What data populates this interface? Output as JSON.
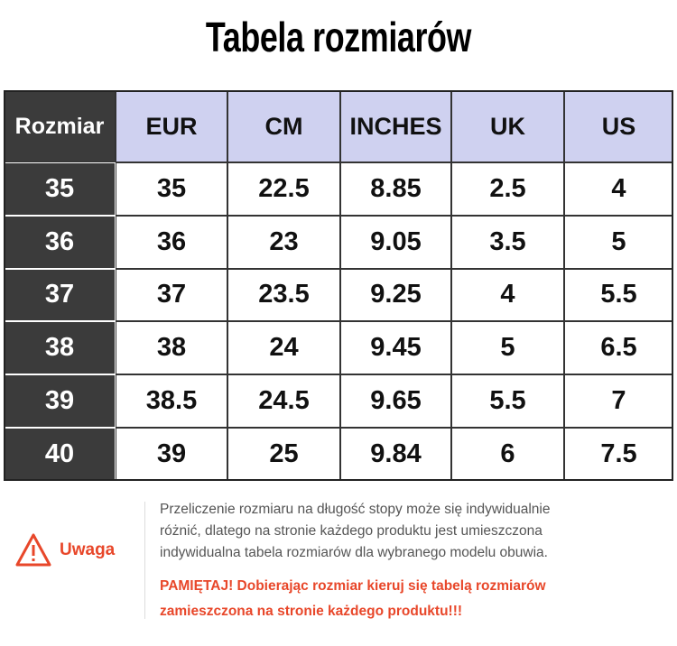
{
  "title": "Tabela rozmiarów",
  "table": {
    "header": [
      "Rozmiar",
      "EUR",
      "CM",
      "INCHES",
      "UK",
      "US"
    ],
    "rows": [
      [
        "35",
        "35",
        "22.5",
        "8.85",
        "2.5",
        "4"
      ],
      [
        "36",
        "36",
        "23",
        "9.05",
        "3.5",
        "5"
      ],
      [
        "37",
        "37",
        "23.5",
        "9.25",
        "4",
        "5.5"
      ],
      [
        "38",
        "38",
        "24",
        "9.45",
        "5",
        "6.5"
      ],
      [
        "39",
        "38.5",
        "24.5",
        "9.65",
        "5.5",
        "7"
      ],
      [
        "40",
        "39",
        "25",
        "9.84",
        "6",
        "7.5"
      ]
    ]
  },
  "note": {
    "label": "Uwaga",
    "lines": [
      "Przeliczenie rozmiaru na długość stopy może się indywidualnie",
      "różnić, dlatego na stronie każdego produktu jest umieszczona",
      "indywidualna tabela rozmiarów dla wybranego modelu obuwia."
    ],
    "warning": [
      "PAMIĘTAJ! Dobierając rozmiar kieruj się tabelą rozmiarów",
      "zamieszczona na stronie każdego produktu!!!"
    ]
  }
}
